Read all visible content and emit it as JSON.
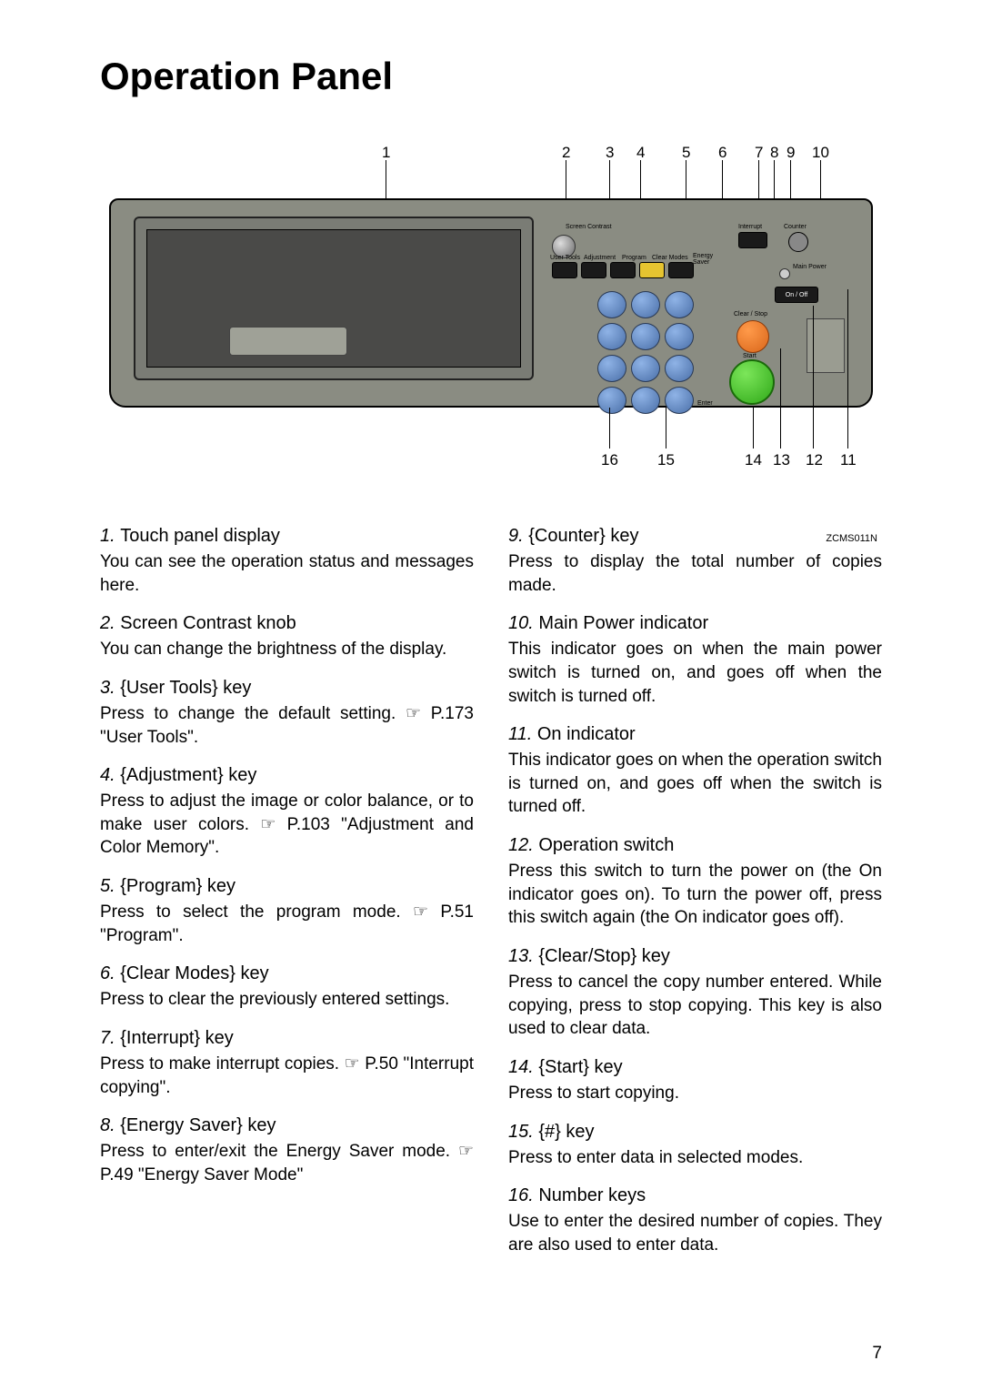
{
  "title": "Operation Panel",
  "page_number": "7",
  "figure_code": "ZCMS011N",
  "top_callouts": [
    "1",
    "2",
    "3",
    "4",
    "5",
    "6",
    "7",
    "8",
    "9",
    "10"
  ],
  "bottom_callouts": [
    "16",
    "15",
    "14",
    "13",
    "12",
    "11"
  ],
  "panel_labels": {
    "screen_contrast": "Screen Contrast",
    "user_tools": "User Tools",
    "adjustment": "Adjustment",
    "program": "Program",
    "clear_modes": "Clear Modes",
    "energy_saver": "Energy Saver",
    "interrupt": "Interrupt",
    "counter": "Counter",
    "main_power": "Main Power",
    "on_off": "On / Off",
    "clear_stop": "Clear / Stop",
    "start": "Start",
    "enter": "Enter"
  },
  "items_left": [
    {
      "num": "1.",
      "title": "Touch panel display",
      "desc": "You can see the operation status and messages here."
    },
    {
      "num": "2.",
      "title": "Screen Contrast knob",
      "desc": "You can change the brightness of the display."
    },
    {
      "num": "3.",
      "title": "{User Tools} key",
      "desc": "Press to change the default setting. ☞ P.173 \"User Tools\"."
    },
    {
      "num": "4.",
      "title": "{Adjustment} key",
      "desc": "Press to adjust the image or color balance, or to make user colors. ☞ P.103 \"Adjustment and Color Memory\"."
    },
    {
      "num": "5.",
      "title": "{Program} key",
      "desc": "Press to select the program mode. ☞ P.51 \"Program\"."
    },
    {
      "num": "6.",
      "title": "{Clear Modes} key",
      "desc": "Press to clear the previously entered settings."
    },
    {
      "num": "7.",
      "title": "{Interrupt} key",
      "desc": "Press to make interrupt copies. ☞ P.50 \"Interrupt copying\"."
    },
    {
      "num": "8.",
      "title": "{Energy Saver} key",
      "desc": "Press to enter/exit the Energy Saver mode. ☞ P.49 \"Energy Saver Mode\""
    }
  ],
  "items_right": [
    {
      "num": "9.",
      "title": "{Counter} key",
      "desc": "Press to display the total number of copies made."
    },
    {
      "num": "10.",
      "title": "Main Power indicator",
      "desc": "This indicator goes on when the main power switch is turned on, and goes off when the switch is turned off."
    },
    {
      "num": "11.",
      "title": "On indicator",
      "desc": "This indicator goes on when the operation switch is turned on, and goes off when the switch is turned off."
    },
    {
      "num": "12.",
      "title": "Operation switch",
      "desc": "Press this switch to turn the power on (the On indicator goes on). To turn the power off, press this switch again (the On indicator goes off)."
    },
    {
      "num": "13.",
      "title": "{Clear/Stop} key",
      "desc": "Press to cancel the copy number entered. While copying, press to stop copying. This key is also used to clear data."
    },
    {
      "num": "14.",
      "title": "{Start} key",
      "desc": "Press to start copying."
    },
    {
      "num": "15.",
      "title": "{#} key",
      "desc": "Press to enter data in selected modes."
    },
    {
      "num": "16.",
      "title": "Number keys",
      "desc": "Use to enter the desired number of copies. They are also used to enter data."
    }
  ]
}
